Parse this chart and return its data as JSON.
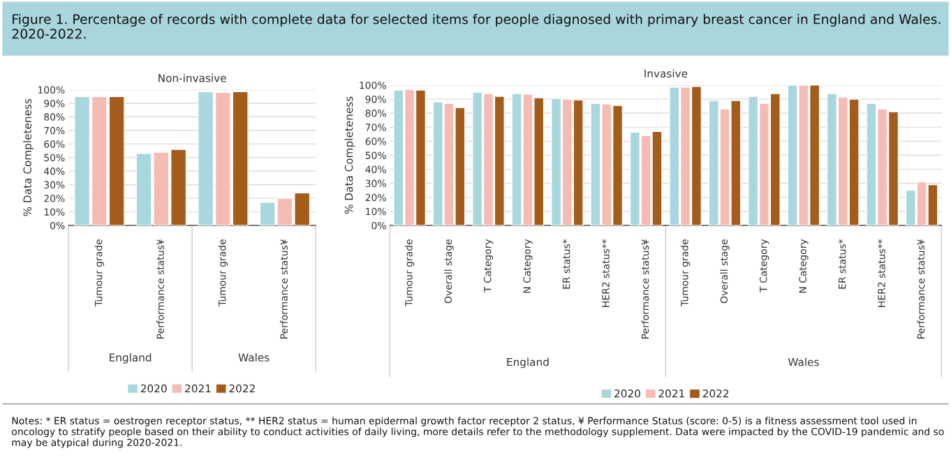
{
  "chart_data": [
    {
      "type": "bar",
      "title": "Non-invasive",
      "ylabel": "% Data Completeness",
      "categories": [
        "Tumour grade",
        "Performance status¥",
        "Tumour grade",
        "Performance status¥"
      ],
      "series": [
        {
          "name": "2020",
          "color": "#a8d8de",
          "values": [
            95,
            53,
            98.5,
            17
          ]
        },
        {
          "name": "2021",
          "color": "#f5bcb4",
          "values": [
            95,
            54,
            98,
            20
          ]
        },
        {
          "name": "2022",
          "color": "#a45c1a",
          "values": [
            95,
            56,
            98.5,
            24
          ]
        }
      ],
      "ylim": [
        0,
        100
      ],
      "yticks": [
        {
          "value": 0,
          "label": "0%"
        },
        {
          "value": 10,
          "label": "10%"
        },
        {
          "value": 20,
          "label": "20%"
        },
        {
          "value": 30,
          "label": "30%"
        },
        {
          "value": 40,
          "label": "40%"
        },
        {
          "value": 50,
          "label": "50%"
        },
        {
          "value": 60,
          "label": "60%"
        },
        {
          "value": 70,
          "label": "70%"
        },
        {
          "value": 80,
          "label": "80%"
        },
        {
          "value": 90,
          "label": "90%"
        },
        {
          "value": 100,
          "label": "100%"
        }
      ],
      "grid": "y",
      "legend": "bottom",
      "annotations": [
        "Figure 1. Percentage of records with complete data for selected items for people diagnosed with primary breast cancer in England and Wales. 2020-2022.",
        "England",
        "Wales",
        "Notes: * ER status = oestrogen receptor status, ** HER2 status = human epidermal growth factor receptor 2 status, ¥ Performance Status (score: 0-5) is a fitness assessment tool used in oncology to stratify people based on their ability to conduct activities of daily living, more details refer to the methodology supplement. Data were impacted by the COVID-19 pandemic and so may be atypical during 2020-2021."
      ]
    },
    {
      "type": "bar",
      "title": "Invasive",
      "ylabel": "% Data Completeness",
      "categories": [
        "Tumour grade",
        "Overall stage",
        "T Category",
        "N Category",
        "ER status*",
        "HER2 status**",
        "Performance status¥",
        "Tumour grade",
        "Overall stage",
        "T Category",
        "N Category",
        "ER status*",
        "HER2 status**",
        "Performance status¥"
      ],
      "series": [
        {
          "name": "2020",
          "color": "#a8d8de",
          "values": [
            96.5,
            88,
            95,
            94,
            90.5,
            87,
            66.5,
            98.5,
            89,
            92,
            100,
            94,
            87,
            25
          ]
        },
        {
          "name": "2021",
          "color": "#f5bcb4",
          "values": [
            97,
            87,
            94,
            93.5,
            90,
            86.5,
            64,
            98.5,
            83,
            87,
            100,
            91.5,
            83,
            31
          ]
        },
        {
          "name": "2022",
          "color": "#a45c1a",
          "values": [
            96.5,
            84,
            92,
            91,
            89.5,
            85.5,
            67,
            99,
            89,
            94,
            100,
            90,
            81,
            29
          ]
        }
      ],
      "ylim": [
        0,
        100
      ],
      "yticks": [
        {
          "value": 0,
          "label": "0%"
        },
        {
          "value": 10,
          "label": "10%"
        },
        {
          "value": 20,
          "label": "20%"
        },
        {
          "value": 30,
          "label": "30%"
        },
        {
          "value": 40,
          "label": "40%"
        },
        {
          "value": 50,
          "label": "50%"
        },
        {
          "value": 60,
          "label": "60%"
        },
        {
          "value": 70,
          "label": "70%"
        },
        {
          "value": 80,
          "label": "80%"
        },
        {
          "value": 90,
          "label": "90%"
        },
        {
          "value": 100,
          "label": "100%"
        }
      ],
      "grid": "y",
      "legend": "bottom",
      "annotations": [
        "England",
        "Wales"
      ]
    }
  ]
}
